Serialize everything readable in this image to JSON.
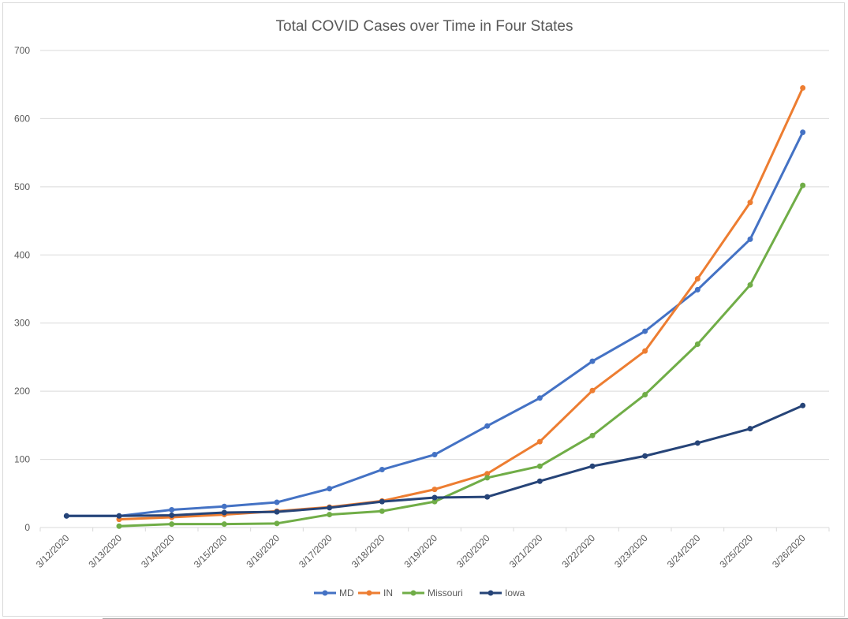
{
  "chart_data": {
    "type": "line",
    "title": "Total COVID Cases over Time in Four States",
    "xlabel": "",
    "ylabel": "",
    "ylim": [
      0,
      700
    ],
    "yticks": [
      0,
      100,
      200,
      300,
      400,
      500,
      600,
      700
    ],
    "grid": true,
    "legend_position": "bottom",
    "categories": [
      "3/12/2020",
      "3/13/2020",
      "3/14/2020",
      "3/15/2020",
      "3/16/2020",
      "3/17/2020",
      "3/18/2020",
      "3/19/2020",
      "3/20/2020",
      "3/21/2020",
      "3/22/2020",
      "3/23/2020",
      "3/24/2020",
      "3/25/2020",
      "3/26/2020"
    ],
    "series": [
      {
        "name": "MD",
        "color": "#4472c4",
        "values": [
          17,
          17,
          26,
          31,
          37,
          57,
          85,
          107,
          149,
          190,
          244,
          288,
          349,
          423,
          580
        ]
      },
      {
        "name": "IN",
        "color": "#ed7d31",
        "values": [
          null,
          12,
          15,
          19,
          24,
          30,
          39,
          56,
          79,
          126,
          201,
          259,
          365,
          477,
          645
        ]
      },
      {
        "name": "Missouri",
        "color": "#70ad47",
        "values": [
          null,
          2,
          5,
          5,
          6,
          19,
          24,
          38,
          73,
          90,
          135,
          195,
          269,
          356,
          502
        ]
      },
      {
        "name": "Iowa",
        "color": "#264478",
        "values": [
          17,
          17,
          18,
          22,
          23,
          29,
          38,
          44,
          45,
          68,
          90,
          105,
          124,
          145,
          179
        ]
      }
    ]
  }
}
